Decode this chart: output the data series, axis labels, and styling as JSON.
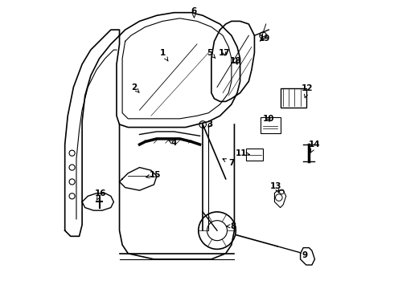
{
  "bg_color": "#ffffff",
  "line_color": "#000000",
  "label_color": "#000000"
}
